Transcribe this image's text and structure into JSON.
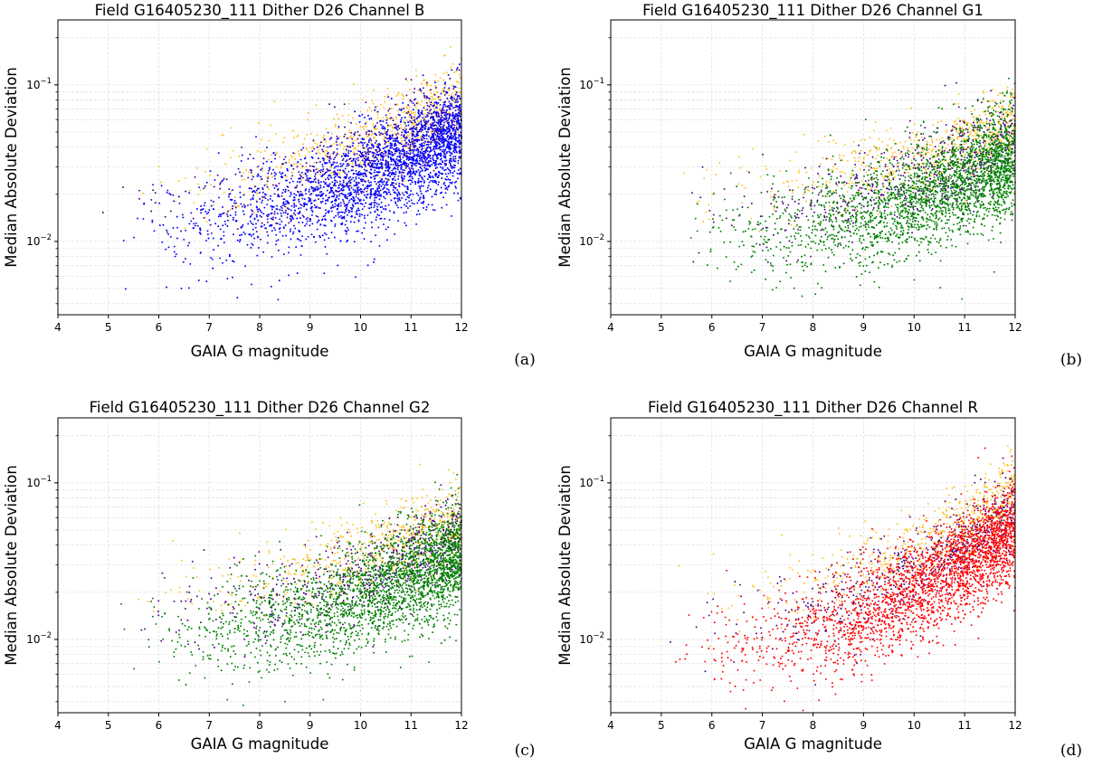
{
  "chart_data": [
    {
      "type": "scatter",
      "title": "Field G16405230_111 Dither D26 Channel B",
      "xlabel": "GAIA G magnitude",
      "ylabel": "Median Absolute Deviation",
      "panel_label": "(a)",
      "xlim": [
        4,
        12
      ],
      "ylim": [
        0.0034,
        0.26
      ],
      "yscale": "log",
      "xticks": [
        4,
        5,
        6,
        7,
        8,
        9,
        10,
        11,
        12
      ],
      "yticks": [
        {
          "base": "10",
          "exp": "−2",
          "value": 0.01
        },
        {
          "base": "10",
          "exp": "−1",
          "value": 0.1
        }
      ],
      "grid": true,
      "series": [
        {
          "name": "orange",
          "color": "#FFC125",
          "values_summary": {
            "bright_end_median": 0.022,
            "faint_end_median": 0.085
          }
        },
        {
          "name": "purple",
          "color": "#4B0082",
          "values_summary": {
            "bright_end_median": 0.016,
            "faint_end_median": 0.065
          }
        },
        {
          "name": "channel",
          "color": "#0000FF",
          "values_summary": {
            "bright_end_median": 0.012,
            "faint_end_median": 0.05
          }
        }
      ]
    },
    {
      "type": "scatter",
      "title": "Field G16405230_111 Dither D26 Channel G1",
      "xlabel": "GAIA G magnitude",
      "ylabel": "Median Absolute Deviation",
      "panel_label": "(b)",
      "xlim": [
        4,
        12
      ],
      "ylim": [
        0.0034,
        0.26
      ],
      "yscale": "log",
      "xticks": [
        4,
        5,
        6,
        7,
        8,
        9,
        10,
        11,
        12
      ],
      "yticks": [
        {
          "base": "10",
          "exp": "−2",
          "value": 0.01
        },
        {
          "base": "10",
          "exp": "−1",
          "value": 0.1
        }
      ],
      "grid": true,
      "series": [
        {
          "name": "orange",
          "color": "#FFC125",
          "values_summary": {
            "bright_end_median": 0.02,
            "faint_end_median": 0.06
          }
        },
        {
          "name": "purple",
          "color": "#4B0082",
          "values_summary": {
            "bright_end_median": 0.014,
            "faint_end_median": 0.045
          }
        },
        {
          "name": "channel",
          "color": "#008000",
          "values_summary": {
            "bright_end_median": 0.01,
            "faint_end_median": 0.035
          }
        }
      ]
    },
    {
      "type": "scatter",
      "title": "Field G16405230_111 Dither D26 Channel G2",
      "xlabel": "GAIA G magnitude",
      "ylabel": "Median Absolute Deviation",
      "panel_label": "(c)",
      "xlim": [
        4,
        12
      ],
      "ylim": [
        0.0034,
        0.26
      ],
      "yscale": "log",
      "xticks": [
        4,
        5,
        6,
        7,
        8,
        9,
        10,
        11,
        12
      ],
      "yticks": [
        {
          "base": "10",
          "exp": "−2",
          "value": 0.01
        },
        {
          "base": "10",
          "exp": "−1",
          "value": 0.1
        }
      ],
      "grid": true,
      "series": [
        {
          "name": "orange",
          "color": "#FFC125",
          "values_summary": {
            "bright_end_median": 0.02,
            "faint_end_median": 0.06
          }
        },
        {
          "name": "purple",
          "color": "#4B0082",
          "values_summary": {
            "bright_end_median": 0.014,
            "faint_end_median": 0.045
          }
        },
        {
          "name": "channel",
          "color": "#008000",
          "values_summary": {
            "bright_end_median": 0.01,
            "faint_end_median": 0.035
          }
        }
      ]
    },
    {
      "type": "scatter",
      "title": "Field G16405230_111 Dither D26 Channel R",
      "xlabel": "GAIA G magnitude",
      "ylabel": "Median Absolute Deviation",
      "panel_label": "(d)",
      "xlim": [
        4,
        12
      ],
      "ylim": [
        0.0034,
        0.26
      ],
      "yscale": "log",
      "xticks": [
        4,
        5,
        6,
        7,
        8,
        9,
        10,
        11,
        12
      ],
      "yticks": [
        {
          "base": "10",
          "exp": "−2",
          "value": 0.01
        },
        {
          "base": "10",
          "exp": "−1",
          "value": 0.1
        }
      ],
      "grid": true,
      "series": [
        {
          "name": "orange",
          "color": "#FFC125",
          "values_summary": {
            "bright_end_median": 0.018,
            "faint_end_median": 0.085
          }
        },
        {
          "name": "purple",
          "color": "#4B0082",
          "values_summary": {
            "bright_end_median": 0.012,
            "faint_end_median": 0.065
          }
        },
        {
          "name": "channel",
          "color": "#FF0000",
          "values_summary": {
            "bright_end_median": 0.008,
            "faint_end_median": 0.05
          }
        }
      ]
    }
  ]
}
